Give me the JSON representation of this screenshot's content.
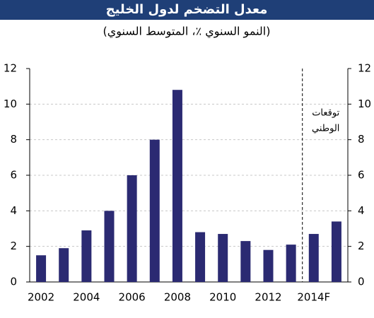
{
  "chart_data": {
    "type": "bar",
    "title": "معدل التضخم لدول الخليج",
    "subtitle": "(النمو السنوي ٪، المتوسط السنوي)",
    "annotation": [
      "توقعات",
      "الوطني"
    ],
    "categories": [
      "2002",
      null,
      "2004",
      null,
      "2006",
      null,
      "2008",
      null,
      "2010",
      null,
      "2012",
      null,
      "2014F",
      null
    ],
    "values": [
      1.5,
      1.9,
      2.9,
      4.0,
      6.0,
      8.0,
      10.8,
      2.8,
      2.7,
      2.3,
      1.8,
      2.1,
      2.7,
      3.4
    ],
    "color": "#2b2a72",
    "ylim": [
      0,
      12
    ],
    "yticks": [
      0,
      2,
      4,
      6,
      8,
      10,
      12
    ],
    "y2lim": [
      0,
      12
    ],
    "y2ticks": [
      0,
      2,
      4,
      6,
      8,
      10,
      12
    ],
    "grid": true
  }
}
